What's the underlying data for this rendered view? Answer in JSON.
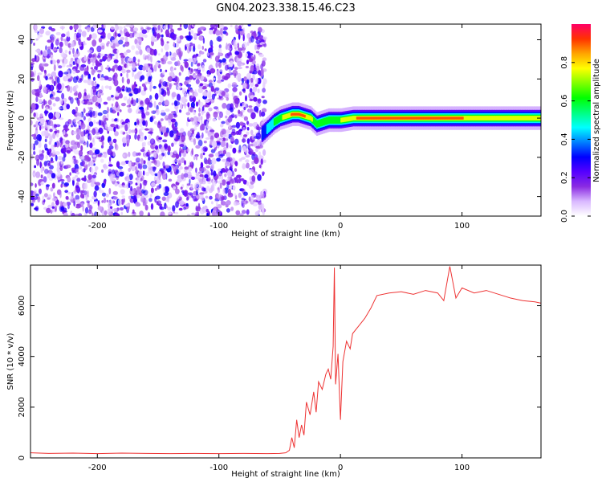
{
  "figure": {
    "title": "GN04.2023.338.15.46.C23"
  },
  "chart_data": [
    {
      "type": "heatmap",
      "name": "spectrogram",
      "xlabel": "Height of straight line (km)",
      "ylabel": "Frequency (Hz)",
      "xlim": [
        -255,
        165
      ],
      "ylim": [
        -50,
        48
      ],
      "x_ticks": [
        -200,
        -100,
        0,
        100
      ],
      "x_tick_labels": [
        "-200",
        "-100",
        "0",
        "100"
      ],
      "y_ticks": [
        -40,
        -20,
        0,
        20,
        40
      ],
      "y_tick_labels": [
        "-40",
        "-20",
        "0",
        "20",
        "40"
      ],
      "grid": false,
      "noise_region_x": [
        -255,
        -62
      ],
      "noise_level_range": [
        0.05,
        0.3
      ],
      "signal_ridge": {
        "x": [
          -65,
          -60,
          -55,
          -50,
          -45,
          -40,
          -35,
          -30,
          -25,
          -20,
          -15,
          -10,
          -5,
          0,
          5,
          10,
          15,
          20,
          30,
          40,
          60,
          80,
          100,
          120,
          140,
          165
        ],
        "frequency": [
          -8,
          -5,
          -2,
          0,
          1,
          2,
          2,
          1,
          0,
          -3,
          -2,
          -1,
          -1,
          -1,
          -0.5,
          0,
          0,
          0,
          0,
          0,
          0,
          0,
          0,
          0,
          0,
          0
        ],
        "amplitude": [
          0.35,
          0.5,
          0.6,
          0.72,
          0.82,
          0.92,
          0.95,
          0.9,
          0.8,
          0.6,
          0.65,
          0.7,
          0.72,
          0.75,
          0.78,
          0.85,
          0.95,
          0.97,
          0.97,
          0.97,
          0.95,
          0.92,
          0.9,
          0.88,
          0.86,
          0.85
        ]
      },
      "colorbar": {
        "label": "Normalized spectral amplitude",
        "range": [
          0,
          1
        ],
        "ticks": [
          0.0,
          0.2,
          0.4,
          0.6,
          0.8
        ],
        "tick_labels": [
          "0.0",
          "0.2",
          "0.4",
          "0.6",
          "0.8"
        ],
        "colormap": [
          "#ffffff",
          "#d9b8ff",
          "#8a2be2",
          "#5500ff",
          "#0000ff",
          "#0080ff",
          "#00ffff",
          "#00ff80",
          "#00ff00",
          "#80ff00",
          "#ffff00",
          "#ffa500",
          "#ff3300",
          "#ff0066"
        ]
      }
    },
    {
      "type": "line",
      "name": "snr",
      "xlabel": "Height of straight line (km)",
      "ylabel": "SNR (10 * v/v)",
      "xlim": [
        -255,
        165
      ],
      "ylim": [
        0,
        7600
      ],
      "x_ticks": [
        -200,
        -100,
        0,
        100
      ],
      "x_tick_labels": [
        "-200",
        "-100",
        "0",
        "100"
      ],
      "y_ticks": [
        0,
        2000,
        4000,
        6000
      ],
      "y_tick_labels": [
        "0",
        "2000",
        "4000",
        "6000"
      ],
      "grid": false,
      "color": "#ee3333",
      "x": [
        -255,
        -240,
        -220,
        -200,
        -180,
        -160,
        -140,
        -120,
        -100,
        -80,
        -60,
        -50,
        -45,
        -42,
        -40,
        -38,
        -36,
        -34,
        -32,
        -30,
        -28,
        -25,
        -22,
        -20,
        -18,
        -15,
        -12,
        -10,
        -8,
        -6,
        -5,
        -4,
        -2,
        0,
        2,
        5,
        8,
        10,
        15,
        20,
        25,
        30,
        40,
        50,
        60,
        70,
        80,
        85,
        90,
        95,
        100,
        110,
        120,
        130,
        140,
        150,
        160,
        165
      ],
      "y": [
        200,
        180,
        190,
        170,
        190,
        180,
        170,
        180,
        170,
        180,
        170,
        180,
        200,
        300,
        800,
        400,
        1500,
        800,
        1300,
        900,
        2200,
        1700,
        2600,
        1800,
        3000,
        2700,
        3300,
        3500,
        3100,
        4400,
        7500,
        2900,
        4100,
        1500,
        3800,
        4600,
        4300,
        4900,
        5200,
        5500,
        5900,
        6400,
        6500,
        6550,
        6450,
        6600,
        6500,
        6200,
        7550,
        6300,
        6700,
        6500,
        6600,
        6450,
        6300,
        6200,
        6150,
        6100
      ]
    }
  ]
}
